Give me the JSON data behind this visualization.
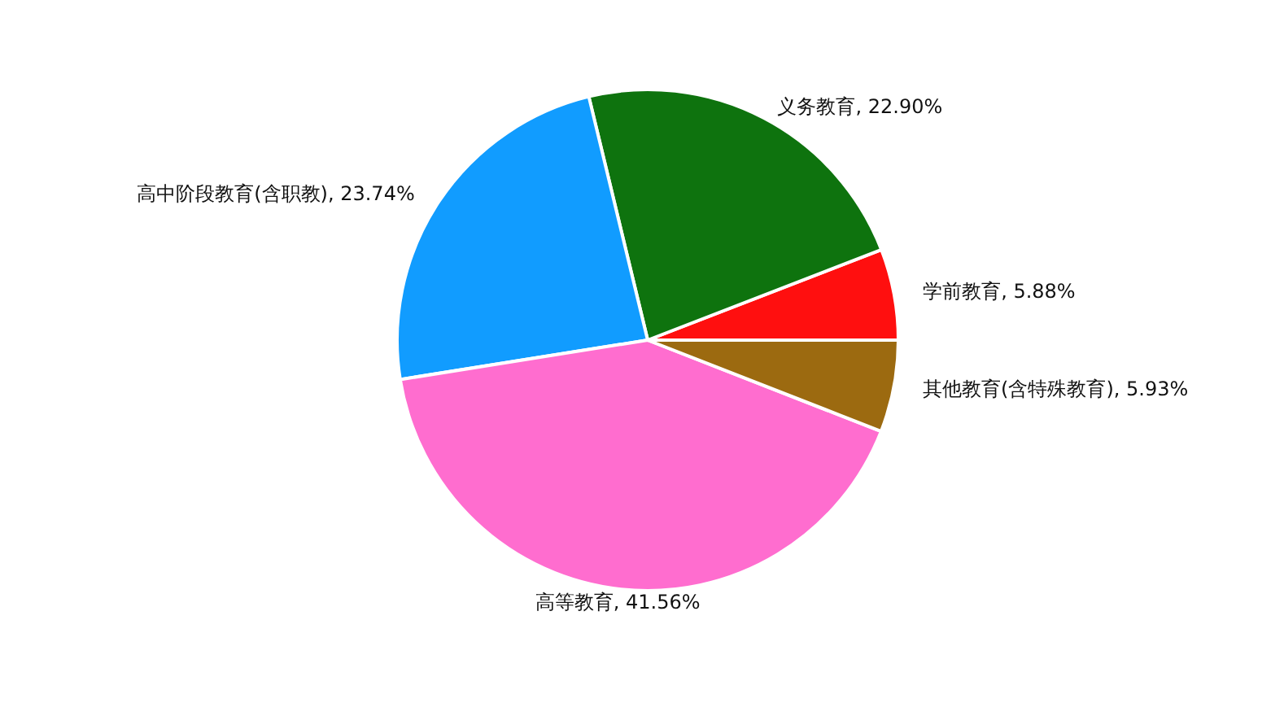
{
  "chart_data": {
    "type": "pie",
    "categories": [
      "学前教育",
      "义务教育",
      "高中阶段教育(含职教)",
      "高等教育",
      "其他教育(含特殊教育)"
    ],
    "values": [
      5.88,
      22.9,
      23.74,
      41.56,
      5.93
    ],
    "colors": [
      "#ff0f0f",
      "#0e730e",
      "#119cff",
      "#ff6dcf",
      "#9c6a10"
    ],
    "value_labels": [
      "5.88%",
      "22.90%",
      "23.74%",
      "41.56%",
      "5.93%"
    ]
  }
}
